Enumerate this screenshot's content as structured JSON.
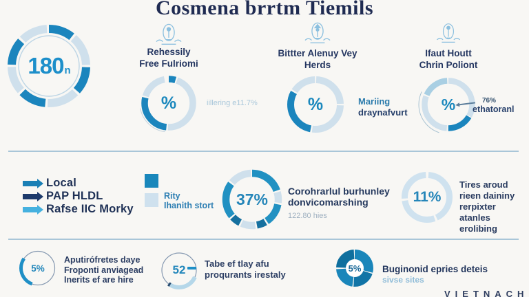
{
  "title": "Cosmena brrtm Tiemils",
  "brand": "VIETNACH",
  "big_stat": {
    "value": "180",
    "suffix": "n"
  },
  "columns": [
    {
      "line1": "Rehessily",
      "line2": "Free Fulriomi",
      "center": "%",
      "note1": "iillering e11.7%",
      "note2": ""
    },
    {
      "line1": "Bittter Alenuy Vey",
      "line2": "Herds",
      "center": "%",
      "note1": "Mariing",
      "note2": "draynafvurt"
    },
    {
      "line1": "Ifaut Houtt",
      "line2": "Chrin Poliont",
      "center": "%",
      "note1": "76%",
      "note2": "ethatoranl"
    }
  ],
  "legend": {
    "items": [
      {
        "label": "Local",
        "color": "#1a7fb5"
      },
      {
        "label": "PAP HLDL",
        "color": "#1d3a6b"
      },
      {
        "label": "Rafse IIC Morky",
        "color": "#45b1df"
      }
    ]
  },
  "swatches": {
    "sq1_color": "#1987bb",
    "sq2_color": "#cfe1ee",
    "line1": "Rity",
    "line2": "Ihanith stort"
  },
  "stat37": {
    "value": "37%",
    "line1": "Corohrarlul burhunley",
    "line2": "donvicomarshing",
    "line3": "122.80 hies"
  },
  "stat11": {
    "value": "11%",
    "line1": "Tires aroud",
    "line2": "rieen daininy",
    "line3": "rerpixter atanles",
    "line4": "erolibing"
  },
  "bottom": [
    {
      "value": "5%",
      "line1": "Aputirófretes daye",
      "line2": "Froponti anviagead",
      "line3": "Inerits ef are hire"
    },
    {
      "value": "52",
      "line1": "Tabe ef tlay afu",
      "line2": "proqurants irestaly"
    },
    {
      "value": "5%",
      "line1": "Buginonid epries deteis",
      "line2": "sivse sites"
    }
  ],
  "chart_data": [
    {
      "type": "pie",
      "id": "big-donut",
      "center_value": "180n",
      "note": "decorative segmented ring, alternating blue/light-blue eighths"
    },
    {
      "type": "pie",
      "id": "col2-donut",
      "center_value": "%",
      "annotation": "iillering e11.7%",
      "filled_fraction": 0.31
    },
    {
      "type": "pie",
      "id": "col3-donut",
      "center_value": "%",
      "annotation": "Mariing draynafvurt",
      "filled_fraction": 0.3
    },
    {
      "type": "pie",
      "id": "col4-donut",
      "center_value": "%",
      "annotation": "76% ethatoranl",
      "filled_fraction": 0.17
    },
    {
      "type": "pie",
      "id": "mid-37-donut",
      "center_value": "37%",
      "annotation": "Corohrarlul burhunley donvicomarshing — 122.80 hies"
    },
    {
      "type": "pie",
      "id": "mid-11-donut",
      "center_value": "11%",
      "annotation": "Tires aroud rieen daininy rerpixter atanles erolibing"
    },
    {
      "type": "pie",
      "id": "bottom-gauge-1",
      "center_value": "5%",
      "filled_fraction": 0.29,
      "annotation": "Aputirófretes daye Froponti anviagead Inerits ef are hire"
    },
    {
      "type": "pie",
      "id": "bottom-gauge-2",
      "center_value": "52",
      "filled_fraction": 0.27,
      "annotation": "Tabe ef tlay afu proqurants irestaly"
    },
    {
      "type": "pie",
      "id": "bottom-donut-3",
      "center_value": "5%",
      "filled_fraction": 1.0,
      "annotation": "Buginonid epries deteis sivse sites"
    }
  ],
  "donuts": {
    "big": {
      "size": 136,
      "r": 54,
      "w": 12,
      "rings": [
        {
          "r": 44,
          "w": 1.4,
          "c": "#bcd5e5"
        }
      ],
      "segments": [
        {
          "s": 0.0,
          "f": 0.105,
          "c": "#1b85bd"
        },
        {
          "s": 0.115,
          "f": 0.13,
          "c": "#cfe0ec"
        },
        {
          "s": 0.255,
          "f": 0.11,
          "c": "#1b85bd"
        },
        {
          "s": 0.375,
          "f": 0.13,
          "c": "#cfe0ec"
        },
        {
          "s": 0.515,
          "f": 0.11,
          "c": "#1b85bd"
        },
        {
          "s": 0.635,
          "f": 0.11,
          "c": "#cfe0ec"
        },
        {
          "s": 0.755,
          "f": 0.11,
          "c": "#1b85bd"
        },
        {
          "s": 0.875,
          "f": 0.115,
          "c": "#cfe0ec"
        }
      ]
    },
    "col2": {
      "size": 90,
      "r": 35,
      "w": 9.5,
      "segments": [
        {
          "s": 0.0,
          "f": 0.045,
          "c": "#1b85bd"
        },
        {
          "s": 0.055,
          "f": 0.45,
          "c": "#cfe0ec"
        },
        {
          "s": 0.515,
          "f": 0.27,
          "c": "#1b85bd"
        },
        {
          "s": 0.795,
          "f": 0.175,
          "c": "#cfe0ec"
        },
        {
          "s": 0.52,
          "f": 0.2,
          "r": 42,
          "w": 1,
          "c": "#c3d3dd"
        }
      ]
    },
    "col3": {
      "size": 92,
      "r": 36,
      "w": 10,
      "segments": [
        {
          "s": 0.005,
          "f": 0.24,
          "c": "#cfe0ec"
        },
        {
          "s": 0.255,
          "f": 0.265,
          "c": "#cfe0ec"
        },
        {
          "s": 0.53,
          "f": 0.3,
          "c": "#1b85bd"
        },
        {
          "s": 0.84,
          "f": 0.155,
          "c": "#cfe0ec"
        }
      ]
    },
    "col4": {
      "size": 92,
      "r": 34.5,
      "w": 8.5,
      "segments": [
        {
          "s": 0.0,
          "f": 0.33,
          "c": "#cfe0ec"
        },
        {
          "s": 0.335,
          "f": 0.165,
          "c": "#1b85bd"
        },
        {
          "s": 0.51,
          "f": 0.295,
          "c": "#cfe0ec"
        },
        {
          "s": 0.815,
          "f": 0.175,
          "c": "#a9cfe3"
        },
        {
          "s": 0.55,
          "f": 0.27,
          "r": 43,
          "w": 1,
          "c": "#a9c3d2"
        }
      ]
    },
    "mid37": {
      "size": 96,
      "r": 38,
      "w": 10.5,
      "segments": [
        {
          "s": 0.0,
          "f": 0.195,
          "c": "#2191c2"
        },
        {
          "s": 0.205,
          "f": 0.065,
          "c": "#cfe0ec"
        },
        {
          "s": 0.28,
          "f": 0.125,
          "c": "#2191c2"
        },
        {
          "s": 0.415,
          "f": 0.055,
          "c": "#15709f"
        },
        {
          "s": 0.48,
          "f": 0.085,
          "c": "#cfe0ec"
        },
        {
          "s": 0.575,
          "f": 0.055,
          "c": "#15709f"
        },
        {
          "s": 0.64,
          "f": 0.21,
          "c": "#2191c2"
        },
        {
          "s": 0.86,
          "f": 0.13,
          "c": "#cfe0ec"
        }
      ]
    },
    "mid11": {
      "size": 80,
      "r": 32.5,
      "w": 9,
      "segments": [
        {
          "s": 0.01,
          "f": 0.42,
          "c": "#cfe2ef"
        },
        {
          "s": 0.445,
          "f": 0.28,
          "c": "#cfe2ef"
        },
        {
          "s": 0.74,
          "f": 0.25,
          "c": "#cfe2ef"
        }
      ]
    },
    "b1": {
      "size": 56,
      "r": 24.5,
      "w": 5,
      "rings": [
        {
          "r": 24.5,
          "w": 1.2,
          "c": "#8699b1"
        }
      ],
      "segments": [
        {
          "s": 0.555,
          "f": 0.29,
          "c": "#1f8fc6"
        }
      ]
    },
    "b2": {
      "size": 58,
      "r": 25,
      "w": 6,
      "rings": [
        {
          "r": 25,
          "w": 1.2,
          "c": "#8699b1"
        }
      ],
      "segments": [
        {
          "s": 0.315,
          "f": 0.27,
          "c": "#b5d7e9"
        },
        {
          "s": 0.585,
          "f": 0.018,
          "c": "#24496e"
        }
      ]
    },
    "b3": {
      "size": 58,
      "r": 20,
      "w": 14,
      "segments": [
        {
          "s": 0.0,
          "f": 1.0,
          "r": 6,
          "w": 13,
          "c": "#ffffff"
        },
        {
          "s": 0.0,
          "f": 0.29,
          "c": "#1a86ba"
        },
        {
          "s": 0.3,
          "f": 0.21,
          "c": "#1174a6"
        },
        {
          "s": 0.52,
          "f": 0.22,
          "c": "#1a86ba"
        },
        {
          "s": 0.755,
          "f": 0.235,
          "c": "#0f6f9e"
        }
      ]
    }
  }
}
